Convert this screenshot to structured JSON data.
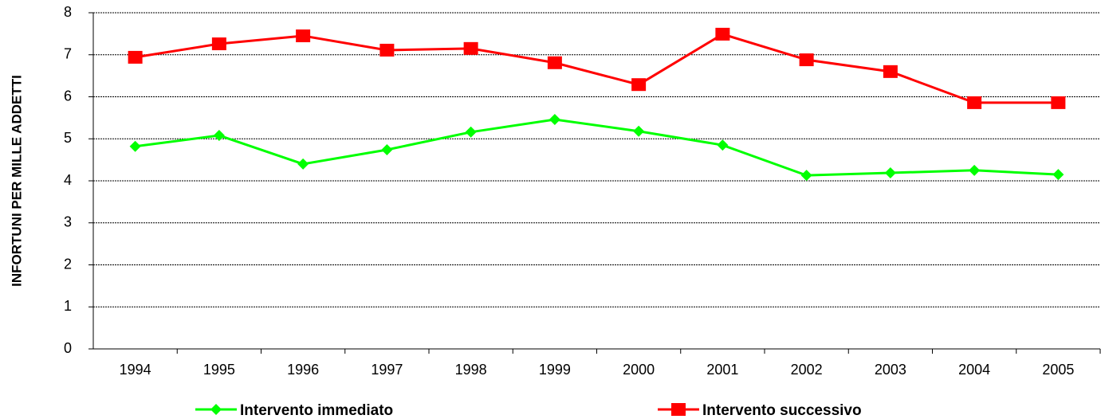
{
  "chart_data": {
    "type": "line",
    "y_label": "INFORTUNI PER MILLE ADDETTI",
    "categories": [
      "1994",
      "1995",
      "1996",
      "1997",
      "1998",
      "1999",
      "2000",
      "2001",
      "2002",
      "2003",
      "2004",
      "2005"
    ],
    "series": [
      {
        "name": "Intervento immediato",
        "color": "#00ff00",
        "marker": "diamond",
        "values": [
          4.82,
          5.08,
          4.4,
          4.74,
          5.16,
          5.46,
          5.18,
          4.85,
          4.13,
          4.19,
          4.25,
          4.15
        ]
      },
      {
        "name": "Intervento successivo",
        "color": "#ff0000",
        "marker": "square",
        "values": [
          6.94,
          7.26,
          7.45,
          7.11,
          7.15,
          6.81,
          6.29,
          7.49,
          6.88,
          6.6,
          5.86,
          5.86
        ]
      }
    ],
    "ylim": [
      0,
      8
    ],
    "yticks": [
      0,
      1,
      2,
      3,
      4,
      5,
      6,
      7,
      8
    ],
    "grid": true
  }
}
